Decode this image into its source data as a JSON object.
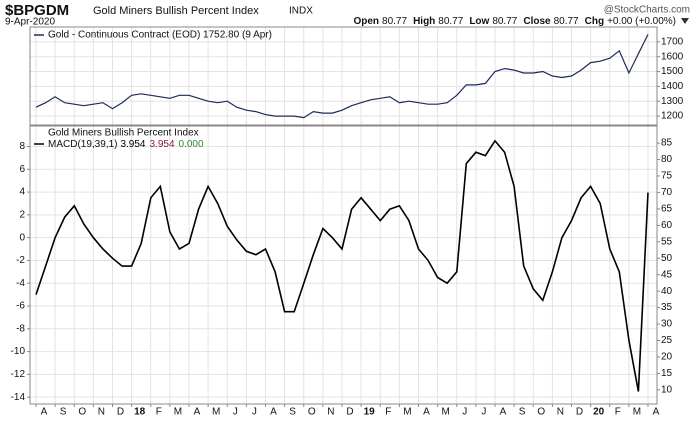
{
  "header": {
    "symbol": "$BPGDM",
    "name": "Gold Miners Bullish Percent Index",
    "exchange": "INDX",
    "date": "9-Apr-2020",
    "copyright": "@StockCharts.com",
    "quote": [
      {
        "label": "Open",
        "value": 80.77
      },
      {
        "label": "High",
        "value": 80.77
      },
      {
        "label": "Low",
        "value": 80.77
      },
      {
        "label": "Close",
        "value": 80.77
      },
      {
        "label": "Chg",
        "value": "+0.00 (+0.00%)"
      }
    ]
  },
  "chart_data": [
    {
      "type": "line",
      "grid": true,
      "series": [
        {
          "name": "Gold - Continuous Contract (EOD) 1752.80 (9 Apr)",
          "color": "#1c2a5c",
          "values": [
            1260,
            1290,
            1330,
            1290,
            1280,
            1270,
            1280,
            1290,
            1250,
            1290,
            1340,
            1350,
            1340,
            1330,
            1320,
            1340,
            1340,
            1320,
            1300,
            1290,
            1300,
            1260,
            1240,
            1230,
            1210,
            1200,
            1200,
            1200,
            1190,
            1230,
            1220,
            1220,
            1240,
            1270,
            1290,
            1310,
            1320,
            1330,
            1290,
            1300,
            1290,
            1280,
            1280,
            1290,
            1340,
            1410,
            1410,
            1420,
            1500,
            1520,
            1510,
            1490,
            1490,
            1500,
            1470,
            1460,
            1470,
            1510,
            1560,
            1570,
            1590,
            1640,
            1490,
            1620,
            1750
          ]
        }
      ],
      "ylim": [
        1140,
        1800
      ],
      "yticks": [
        1200,
        1300,
        1400,
        1500,
        1600,
        1700
      ]
    },
    {
      "type": "line",
      "grid": true,
      "title": "Gold Miners Bullish Percent Index",
      "categories": [
        "A",
        null,
        "S",
        null,
        "O",
        null,
        "N",
        null,
        "D",
        null,
        "18",
        null,
        "F",
        null,
        "M",
        null,
        "A",
        null,
        "M",
        null,
        "J",
        null,
        "J",
        null,
        "A",
        null,
        "S",
        null,
        "O",
        null,
        "N",
        null,
        "D",
        null,
        "19",
        null,
        "F",
        null,
        "M",
        null,
        "A",
        null,
        "M",
        null,
        "J",
        null,
        "J",
        null,
        "A",
        null,
        "S",
        null,
        "O",
        null,
        "N",
        null,
        "D",
        null,
        "20",
        null,
        "F",
        null,
        "M",
        null,
        "A"
      ],
      "series": [
        {
          "name": "MACD(19,39,1)",
          "color": "#000000",
          "values": [
            -5,
            -2.5,
            0,
            1.8,
            2.8,
            1.2,
            0,
            -1,
            -1.8,
            -2.5,
            -2.5,
            -0.5,
            3.5,
            4.5,
            0.5,
            -1,
            -0.5,
            2.5,
            4.5,
            3,
            1,
            -0.2,
            -1.2,
            -1.5,
            -1,
            -3,
            -6.5,
            -6.5,
            -4,
            -1.5,
            0.8,
            0,
            -1,
            2.5,
            3.5,
            2.5,
            1.5,
            2.5,
            2.8,
            1.5,
            -1,
            -2,
            -3.5,
            -4,
            -3,
            6.5,
            7.5,
            7.2,
            8.5,
            7.5,
            4.5,
            -2.5,
            -4.5,
            -5.5,
            -3,
            0,
            1.5,
            3.5,
            4.5,
            3,
            -1,
            -3,
            -9,
            -13.5,
            3.954
          ]
        }
      ],
      "readout": [
        3.954,
        3.954,
        {
          "value": 0,
          "label": "0.000"
        }
      ],
      "readout_colors": [
        "#000000",
        "#8b1a3a",
        "#2e8b2e"
      ],
      "ylim": [
        -14.6,
        9.8
      ],
      "yticks": [
        -14,
        -12,
        -10,
        -8,
        -6,
        -4,
        -2,
        0,
        2,
        4,
        6,
        8
      ],
      "y2lim": [
        5.7,
        90.2
      ],
      "y2ticks": [
        10,
        15,
        20,
        25,
        30,
        35,
        40,
        45,
        50,
        55,
        60,
        65,
        70,
        75,
        80,
        85
      ]
    }
  ]
}
